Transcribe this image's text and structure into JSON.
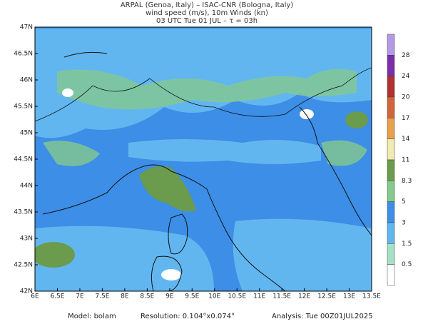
{
  "header": {
    "lines": [
      "ARPAL (Genoa, Italy)  –  ISAC-CNR (Bologna, Italy)",
      "wind speed (m/s), 10m Winds (kn)",
      "03 UTC Tue 01 JUL  –  τ = 03h"
    ]
  },
  "map": {
    "lon_ticks": [
      "6E",
      "6.5E",
      "7E",
      "7.5E",
      "8E",
      "8.5E",
      "9E",
      "9.5E",
      "10E",
      "10.5E",
      "11E",
      "11.5E",
      "12E",
      "12.5E",
      "13E",
      "13.5E"
    ],
    "lat_ticks": [
      "47N",
      "46.5N",
      "46N",
      "45.5N",
      "45N",
      "44.5N",
      "44N",
      "43.5N",
      "43N",
      "42.5N",
      "42N"
    ]
  },
  "colorbar": {
    "labels": [
      "28",
      "24",
      "20",
      "17",
      "14",
      "11",
      "8.3",
      "5",
      "3",
      "1.5",
      "0.5"
    ],
    "colors": [
      "#b49ae6",
      "#7a2ea8",
      "#b23030",
      "#d2643a",
      "#e8a04a",
      "#f2eab0",
      "#6b9b4c",
      "#84c98e",
      "#3c8ee6",
      "#62b6f0",
      "#a6e0c8",
      "#ffffff"
    ]
  },
  "footer": {
    "model": "Model: bolam",
    "resolution": "Resolution: 0.104°x0.074°",
    "analysis": "Analysis: Tue 00Z01JUL2025"
  }
}
